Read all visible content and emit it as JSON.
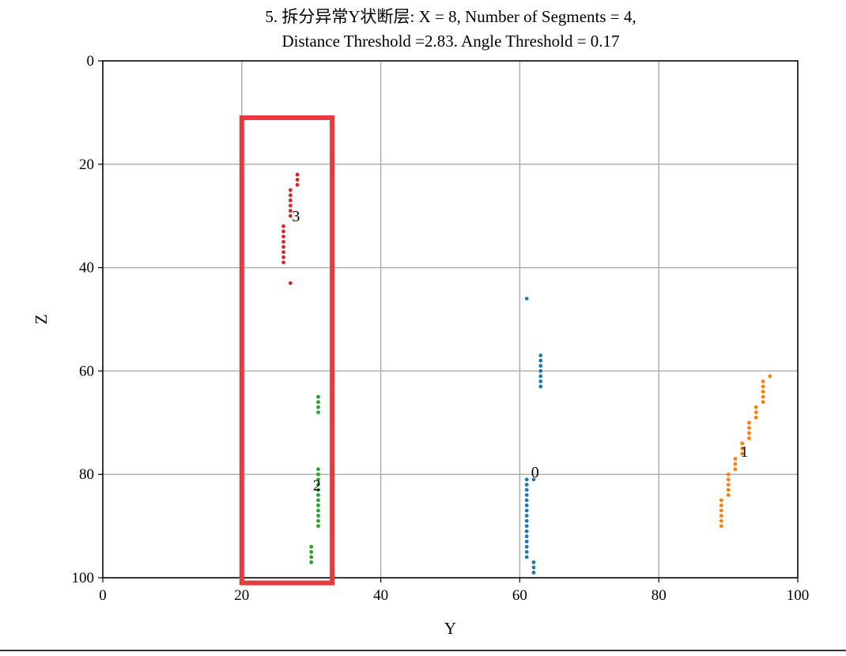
{
  "chart_data": {
    "type": "scatter",
    "title_line1": "5. 拆分异常Y状断层: X = 8, Number of Segments = 4,",
    "title_line2": "Distance Threshold =2.83. Angle Threshold = 0.17",
    "xlabel": "Y",
    "ylabel": "Z",
    "xlim": [
      0,
      100
    ],
    "ylim": [
      100,
      0
    ],
    "y_inverted": true,
    "x_ticks": [
      "0",
      "20",
      "40",
      "60",
      "80",
      "100"
    ],
    "y_ticks": [
      "0",
      "20",
      "40",
      "60",
      "80",
      "100"
    ],
    "grid": true,
    "series": [
      {
        "label": "0",
        "label_pos": [
          62.2,
          79.5
        ],
        "color": "#1f77b4",
        "points": [
          [
            61,
            46
          ],
          [
            63,
            57
          ],
          [
            63,
            58
          ],
          [
            63,
            59
          ],
          [
            63,
            60
          ],
          [
            63,
            61
          ],
          [
            63,
            62
          ],
          [
            63,
            63
          ],
          [
            62,
            81
          ],
          [
            61,
            81
          ],
          [
            61,
            82
          ],
          [
            61,
            83
          ],
          [
            61,
            84
          ],
          [
            61,
            85
          ],
          [
            61,
            86
          ],
          [
            61,
            87
          ],
          [
            61,
            88
          ],
          [
            61,
            89
          ],
          [
            61,
            90
          ],
          [
            61,
            91
          ],
          [
            61,
            92
          ],
          [
            61,
            93
          ],
          [
            61,
            94
          ],
          [
            61,
            95
          ],
          [
            61,
            96
          ],
          [
            62,
            97
          ],
          [
            62,
            98
          ],
          [
            62,
            99
          ]
        ]
      },
      {
        "label": "1",
        "label_pos": [
          92.3,
          75.5
        ],
        "color": "#ff7f0e",
        "points": [
          [
            96,
            61
          ],
          [
            95,
            62
          ],
          [
            95,
            63
          ],
          [
            95,
            64
          ],
          [
            95,
            65
          ],
          [
            95,
            66
          ],
          [
            94,
            67
          ],
          [
            94,
            68
          ],
          [
            94,
            69
          ],
          [
            93,
            70
          ],
          [
            93,
            71
          ],
          [
            93,
            72
          ],
          [
            93,
            73
          ],
          [
            92,
            74
          ],
          [
            92,
            75
          ],
          [
            92,
            76
          ],
          [
            91,
            77
          ],
          [
            91,
            78
          ],
          [
            91,
            79
          ],
          [
            90,
            80
          ],
          [
            90,
            81
          ],
          [
            90,
            82
          ],
          [
            90,
            83
          ],
          [
            90,
            84
          ],
          [
            89,
            85
          ],
          [
            89,
            86
          ],
          [
            89,
            87
          ],
          [
            89,
            88
          ],
          [
            89,
            89
          ],
          [
            89,
            90
          ]
        ]
      },
      {
        "label": "2",
        "label_pos": [
          30.8,
          82.0
        ],
        "color": "#2ca02c",
        "points": [
          [
            31,
            65
          ],
          [
            31,
            66
          ],
          [
            31,
            67
          ],
          [
            31,
            68
          ],
          [
            31,
            79
          ],
          [
            31,
            80
          ],
          [
            31,
            81
          ],
          [
            31,
            82
          ],
          [
            31,
            83
          ],
          [
            31,
            84
          ],
          [
            31,
            85
          ],
          [
            31,
            86
          ],
          [
            31,
            87
          ],
          [
            31,
            88
          ],
          [
            31,
            89
          ],
          [
            31,
            90
          ],
          [
            30,
            94
          ],
          [
            30,
            95
          ],
          [
            30,
            96
          ],
          [
            30,
            97
          ]
        ]
      },
      {
        "label": "3",
        "label_pos": [
          27.8,
          30.0
        ],
        "color": "#d62728",
        "points": [
          [
            28,
            22
          ],
          [
            28,
            23
          ],
          [
            28,
            24
          ],
          [
            27,
            25
          ],
          [
            27,
            26
          ],
          [
            27,
            27
          ],
          [
            27,
            28
          ],
          [
            27,
            29
          ],
          [
            27,
            30
          ],
          [
            26,
            32
          ],
          [
            26,
            33
          ],
          [
            26,
            34
          ],
          [
            26,
            35
          ],
          [
            26,
            36
          ],
          [
            26,
            37
          ],
          [
            26,
            38
          ],
          [
            26,
            39
          ],
          [
            27,
            43
          ]
        ]
      }
    ],
    "highlight": {
      "color": "#e8393c",
      "y_min": 20,
      "y_max": 33,
      "z_min": 11,
      "z_max": 101
    }
  }
}
